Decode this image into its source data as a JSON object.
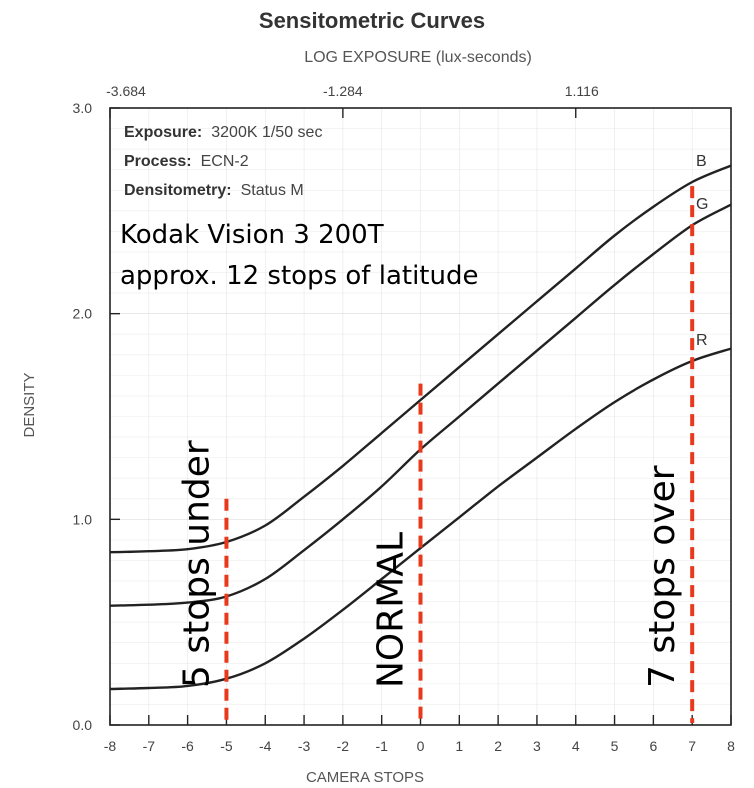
{
  "chart_data": {
    "type": "line",
    "title": "Sensitometric Curves",
    "top_axis_label": "LOG EXPOSURE (lux-seconds)",
    "top_ticks": [
      "-3.684",
      "-1.284",
      "1.116"
    ],
    "xlabel": "CAMERA STOPS",
    "ylabel": "DENSITY",
    "xlim": [
      -8,
      8
    ],
    "ylim": [
      0,
      3
    ],
    "x_ticks": [
      -8,
      -7,
      -6,
      -5,
      -4,
      -3,
      -2,
      -1,
      0,
      1,
      2,
      3,
      4,
      5,
      6,
      7,
      8
    ],
    "y_ticks": [
      "0.0",
      "1.0",
      "2.0",
      "3.0"
    ],
    "info": [
      {
        "label": "Exposure:",
        "value": "3200K 1/50 sec"
      },
      {
        "label": "Process:",
        "value": "ECN-2"
      },
      {
        "label": "Densitometry:",
        "value": "Status M"
      }
    ],
    "note_lines": [
      "Kodak Vision 3 200T",
      "approx. 12 stops of latitude"
    ],
    "x": [
      -8,
      -7,
      -6,
      -5,
      -4,
      -3,
      -2,
      -1,
      0,
      1,
      2,
      3,
      4,
      5,
      6,
      7,
      8
    ],
    "series": [
      {
        "name": "B",
        "values": [
          0.84,
          0.845,
          0.855,
          0.89,
          0.97,
          1.11,
          1.26,
          1.42,
          1.58,
          1.74,
          1.9,
          2.06,
          2.22,
          2.38,
          2.52,
          2.64,
          2.72
        ]
      },
      {
        "name": "G",
        "values": [
          0.58,
          0.585,
          0.595,
          0.625,
          0.71,
          0.85,
          1.0,
          1.16,
          1.34,
          1.5,
          1.66,
          1.82,
          1.98,
          2.14,
          2.29,
          2.43,
          2.53
        ]
      },
      {
        "name": "R",
        "values": [
          0.175,
          0.18,
          0.19,
          0.225,
          0.3,
          0.42,
          0.56,
          0.71,
          0.86,
          1.01,
          1.16,
          1.3,
          1.44,
          1.57,
          1.68,
          1.77,
          1.83
        ]
      }
    ],
    "markers": [
      {
        "x": -5,
        "y_top": 1.1,
        "label": "5 stops under"
      },
      {
        "x": 0,
        "y_top": 1.66,
        "label": "NORMAL"
      },
      {
        "x": 7,
        "y_top": 2.62,
        "label": "7 stops over"
      }
    ],
    "colors": {
      "curve": "#222222",
      "marker": "#e8391d",
      "grid": "#bbbbbb"
    },
    "grid": true
  }
}
